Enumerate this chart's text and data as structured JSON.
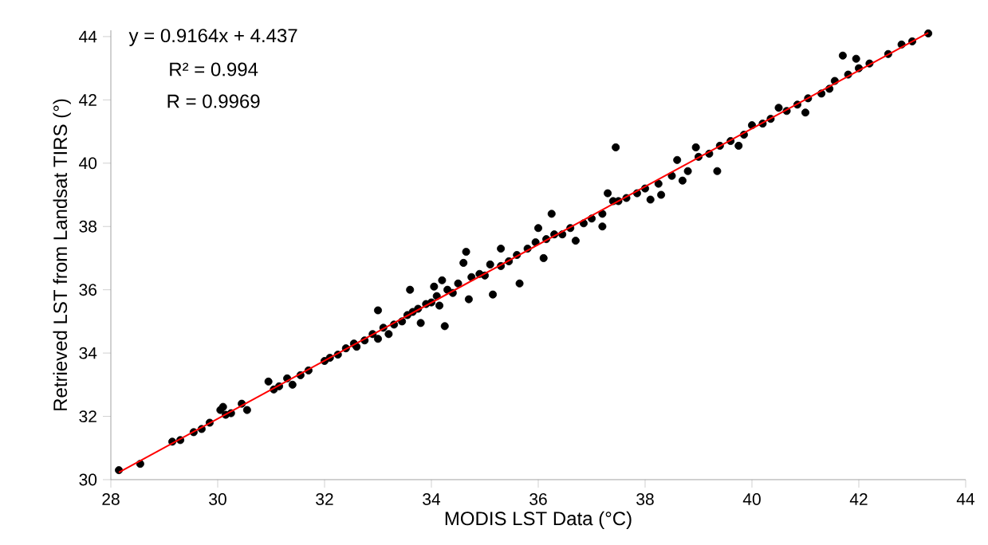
{
  "chart_data": {
    "type": "scatter",
    "xlabel": "MODIS LST Data (°C)",
    "ylabel": "Retrieved LST from Landsat TIRS (°)",
    "annotations": [
      "y = 0.9164x + 4.437",
      "R² = 0.994",
      "R = 0.9969"
    ],
    "xlim": [
      28,
      44
    ],
    "ylim": [
      30,
      44.2
    ],
    "xticks": [
      28,
      30,
      32,
      34,
      36,
      38,
      40,
      42,
      44
    ],
    "yticks": [
      30,
      32,
      34,
      36,
      38,
      40,
      42,
      44
    ],
    "series": [
      {
        "marker": "circle",
        "color": "#000000",
        "x": [
          28.15,
          28.55,
          29.15,
          29.3,
          29.55,
          29.7,
          29.85,
          30.05,
          30.1,
          30.15,
          30.25,
          30.45,
          30.55,
          30.95,
          31.05,
          31.15,
          31.3,
          31.4,
          31.55,
          31.7,
          32.0,
          32.1,
          32.25,
          32.4,
          32.55,
          32.6,
          32.75,
          32.9,
          33.0,
          33.0,
          33.1,
          33.2,
          33.3,
          33.45,
          33.55,
          33.6,
          33.65,
          33.75,
          33.8,
          33.9,
          34.0,
          34.05,
          34.1,
          34.15,
          34.2,
          34.25,
          34.3,
          34.4,
          34.5,
          34.6,
          34.65,
          34.7,
          34.75,
          34.9,
          35.0,
          35.1,
          35.15,
          35.3,
          35.3,
          35.45,
          35.6,
          35.65,
          35.8,
          35.95,
          36.0,
          36.1,
          36.15,
          36.25,
          36.3,
          36.45,
          36.6,
          36.7,
          36.85,
          37.0,
          37.2,
          37.2,
          37.3,
          37.4,
          37.45,
          37.5,
          37.65,
          37.85,
          38.0,
          38.1,
          38.25,
          38.3,
          38.5,
          38.6,
          38.7,
          38.8,
          38.95,
          39.0,
          39.2,
          39.35,
          39.4,
          39.6,
          39.75,
          39.85,
          40.0,
          40.2,
          40.35,
          40.5,
          40.65,
          40.85,
          41.0,
          41.05,
          41.3,
          41.45,
          41.55,
          41.7,
          41.8,
          41.95,
          42.0,
          42.2,
          42.55,
          42.8,
          43.0,
          43.3
        ],
        "values": [
          30.3,
          30.5,
          31.2,
          31.25,
          31.5,
          31.6,
          31.8,
          32.2,
          32.3,
          32.05,
          32.1,
          32.4,
          32.2,
          33.1,
          32.85,
          32.95,
          33.2,
          33.0,
          33.3,
          33.45,
          33.75,
          33.85,
          33.95,
          34.15,
          34.3,
          34.2,
          34.4,
          34.6,
          35.35,
          34.45,
          34.8,
          34.6,
          34.9,
          35.0,
          35.2,
          36.0,
          35.3,
          35.4,
          34.95,
          35.55,
          35.6,
          36.1,
          35.8,
          35.5,
          36.3,
          34.85,
          36.0,
          35.9,
          36.2,
          36.85,
          37.2,
          35.7,
          36.4,
          36.5,
          36.45,
          36.8,
          35.85,
          37.3,
          36.75,
          36.9,
          37.1,
          36.2,
          37.3,
          37.5,
          37.95,
          37.0,
          37.6,
          38.4,
          37.75,
          37.75,
          37.95,
          37.55,
          38.1,
          38.25,
          38.4,
          38.0,
          39.05,
          38.8,
          40.5,
          38.8,
          38.9,
          39.05,
          39.2,
          38.85,
          39.35,
          39.0,
          39.6,
          40.1,
          39.45,
          39.75,
          40.5,
          40.2,
          40.3,
          39.75,
          40.55,
          40.7,
          40.55,
          40.9,
          41.2,
          41.25,
          41.4,
          41.75,
          41.65,
          41.85,
          41.6,
          42.05,
          42.2,
          42.35,
          42.6,
          43.4,
          42.8,
          43.3,
          43.0,
          43.15,
          43.45,
          43.75,
          43.85,
          44.1
        ]
      },
      {
        "type": "line",
        "marker": "none",
        "color": "#ff0000",
        "x": [
          28.15,
          43.3
        ],
        "values": [
          30.23,
          44.12
        ]
      }
    ]
  }
}
